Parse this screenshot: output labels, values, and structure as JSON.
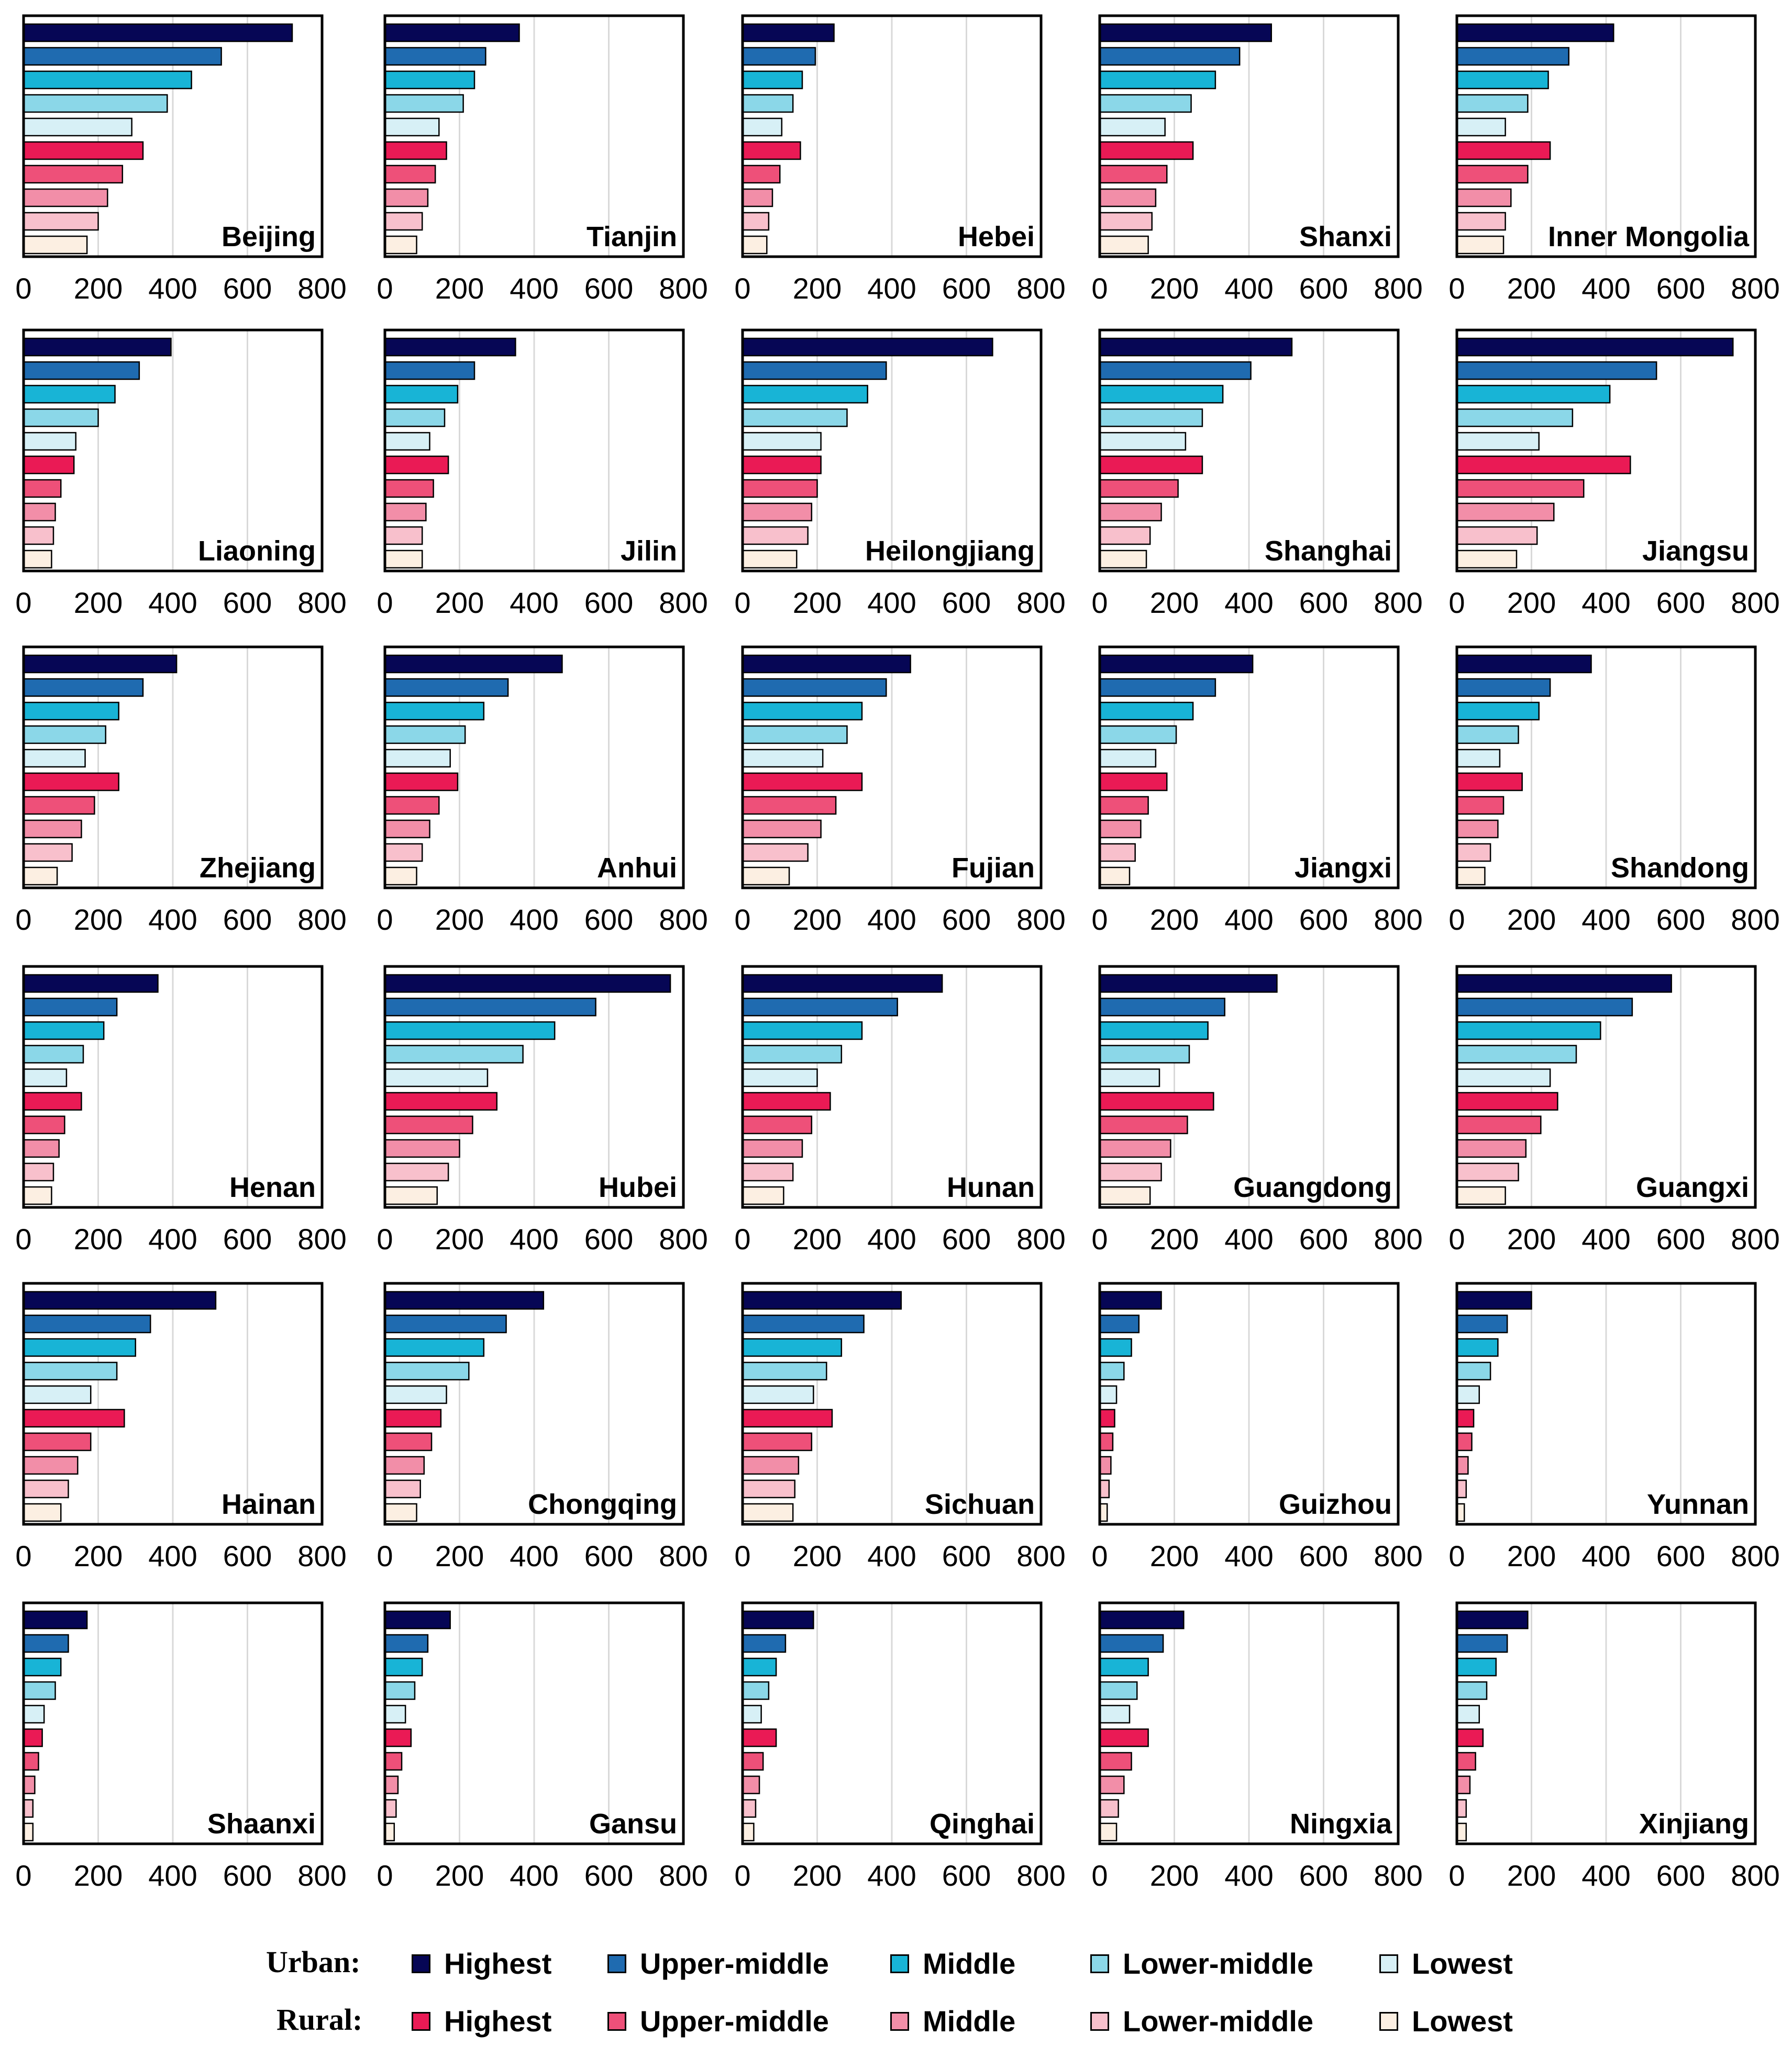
{
  "chart_data": {
    "type": "bar",
    "orientation": "horizontal",
    "xlim": [
      0,
      800
    ],
    "xticks": [
      0,
      200,
      400,
      600,
      800
    ],
    "grid": true,
    "series_order": [
      "urban_highest",
      "urban_upper_middle",
      "urban_middle",
      "urban_lower_middle",
      "urban_lowest",
      "rural_highest",
      "rural_upper_middle",
      "rural_middle",
      "rural_lower_middle",
      "rural_lowest"
    ],
    "panels": [
      {
        "region": "Beijing",
        "values": [
          720,
          530,
          450,
          385,
          290,
          320,
          265,
          225,
          200,
          170
        ]
      },
      {
        "region": "Tianjin",
        "values": [
          360,
          270,
          240,
          210,
          145,
          165,
          135,
          115,
          100,
          85
        ]
      },
      {
        "region": "Hebei",
        "values": [
          245,
          195,
          160,
          135,
          105,
          155,
          100,
          80,
          70,
          65
        ]
      },
      {
        "region": "Shanxi",
        "values": [
          460,
          375,
          310,
          245,
          175,
          250,
          180,
          150,
          140,
          130
        ]
      },
      {
        "region": "Inner Mongolia",
        "values": [
          420,
          300,
          245,
          190,
          130,
          250,
          190,
          145,
          130,
          125
        ]
      },
      {
        "region": "Liaoning",
        "values": [
          395,
          310,
          245,
          200,
          140,
          135,
          100,
          85,
          80,
          75
        ]
      },
      {
        "region": "Jilin",
        "values": [
          350,
          240,
          195,
          160,
          120,
          170,
          130,
          110,
          100,
          100
        ]
      },
      {
        "region": "Heilongjiang",
        "values": [
          670,
          385,
          335,
          280,
          210,
          210,
          200,
          185,
          175,
          145
        ]
      },
      {
        "region": "Shanghai",
        "values": [
          515,
          405,
          330,
          275,
          230,
          275,
          210,
          165,
          135,
          125
        ]
      },
      {
        "region": "Jiangsu",
        "values": [
          740,
          535,
          410,
          310,
          220,
          465,
          340,
          260,
          215,
          160
        ]
      },
      {
        "region": "Zhejiang",
        "values": [
          410,
          320,
          255,
          220,
          165,
          255,
          190,
          155,
          130,
          90
        ]
      },
      {
        "region": "Anhui",
        "values": [
          475,
          330,
          265,
          215,
          175,
          195,
          145,
          120,
          100,
          85
        ]
      },
      {
        "region": "Fujian",
        "values": [
          450,
          385,
          320,
          280,
          215,
          320,
          250,
          210,
          175,
          125
        ]
      },
      {
        "region": "Jiangxi",
        "values": [
          410,
          310,
          250,
          205,
          150,
          180,
          130,
          110,
          95,
          80
        ]
      },
      {
        "region": "Shandong",
        "values": [
          360,
          250,
          220,
          165,
          115,
          175,
          125,
          110,
          90,
          75
        ]
      },
      {
        "region": "Henan",
        "values": [
          360,
          250,
          215,
          160,
          115,
          155,
          110,
          95,
          80,
          75
        ]
      },
      {
        "region": "Hubei",
        "values": [
          765,
          565,
          455,
          370,
          275,
          300,
          235,
          200,
          170,
          140
        ]
      },
      {
        "region": "Hunan",
        "values": [
          535,
          415,
          320,
          265,
          200,
          235,
          185,
          160,
          135,
          110
        ]
      },
      {
        "region": "Guangdong",
        "values": [
          475,
          335,
          290,
          240,
          160,
          305,
          235,
          190,
          165,
          135
        ]
      },
      {
        "region": "Guangxi",
        "values": [
          575,
          470,
          385,
          320,
          250,
          270,
          225,
          185,
          165,
          130
        ]
      },
      {
        "region": "Hainan",
        "values": [
          515,
          340,
          300,
          250,
          180,
          270,
          180,
          145,
          120,
          100
        ]
      },
      {
        "region": "Chongqing",
        "values": [
          425,
          325,
          265,
          225,
          165,
          150,
          125,
          105,
          95,
          85
        ]
      },
      {
        "region": "Sichuan",
        "values": [
          425,
          325,
          265,
          225,
          190,
          240,
          185,
          150,
          140,
          135
        ]
      },
      {
        "region": "Guizhou",
        "values": [
          165,
          105,
          85,
          65,
          45,
          40,
          35,
          30,
          25,
          20
        ]
      },
      {
        "region": "Yunnan",
        "values": [
          200,
          135,
          110,
          90,
          60,
          45,
          40,
          30,
          25,
          20
        ]
      },
      {
        "region": "Shaanxi",
        "values": [
          170,
          120,
          100,
          85,
          55,
          50,
          40,
          30,
          25,
          25
        ]
      },
      {
        "region": "Gansu",
        "values": [
          175,
          115,
          100,
          80,
          55,
          70,
          45,
          35,
          30,
          25
        ]
      },
      {
        "region": "Qinghai",
        "values": [
          190,
          115,
          90,
          70,
          50,
          90,
          55,
          45,
          35,
          30
        ]
      },
      {
        "region": "Ningxia",
        "values": [
          225,
          170,
          130,
          100,
          80,
          130,
          85,
          65,
          50,
          45
        ]
      },
      {
        "region": "Xinjiang",
        "values": [
          190,
          135,
          105,
          80,
          60,
          70,
          50,
          35,
          25,
          25
        ]
      }
    ]
  },
  "colors": {
    "urban_highest": "#060655",
    "urban_upper_middle": "#1f6bb0",
    "urban_middle": "#18b4d6",
    "urban_lower_middle": "#8bd7e8",
    "urban_lowest": "#d7f0f6",
    "rural_highest": "#ea1a55",
    "rural_upper_middle": "#ee5079",
    "rural_middle": "#f28ea8",
    "rural_lower_middle": "#f8c0cc",
    "rural_lowest": "#fcefe2"
  },
  "legend": {
    "urban_title": "Urban:",
    "rural_title": "Rural:",
    "urban_items": [
      {
        "label": "Highest",
        "key": "urban_highest"
      },
      {
        "label": "Upper-middle",
        "key": "urban_upper_middle"
      },
      {
        "label": "Middle",
        "key": "urban_middle"
      },
      {
        "label": "Lower-middle",
        "key": "urban_lower_middle"
      },
      {
        "label": "Lowest",
        "key": "urban_lowest"
      }
    ],
    "rural_items": [
      {
        "label": "Highest",
        "key": "rural_highest"
      },
      {
        "label": "Upper-middle",
        "key": "rural_upper_middle"
      },
      {
        "label": "Middle",
        "key": "rural_middle"
      },
      {
        "label": "Lower-middle",
        "key": "rural_lower_middle"
      },
      {
        "label": "Lowest",
        "key": "rural_lowest"
      }
    ]
  }
}
